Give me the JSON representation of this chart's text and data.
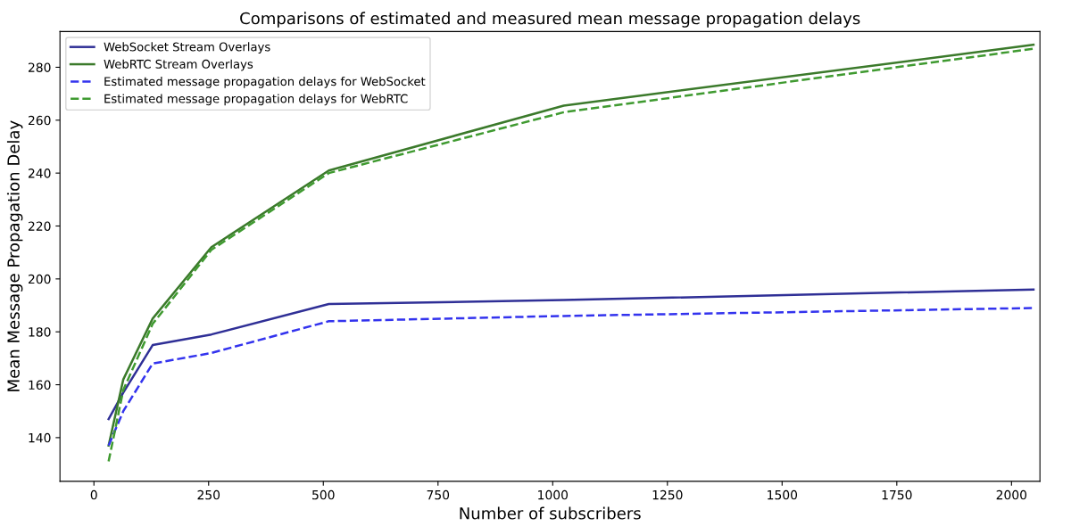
{
  "chart_data": {
    "type": "line",
    "title": "Comparisons of estimated and measured mean message propagation delays",
    "xlabel": "Number of subscribers",
    "ylabel": "Mean Message Propagation Delay",
    "x": [
      32,
      64,
      128,
      256,
      512,
      1024,
      2048
    ],
    "series": [
      {
        "name": "WebSocket Stream Overlays",
        "color": "#2f2f96",
        "line_style": "solid",
        "values": [
          147,
          157,
          175,
          179,
          190.5,
          192,
          196
        ]
      },
      {
        "name": "WebRTC Stream Overlays",
        "color": "#3b7a2b",
        "line_style": "solid",
        "values": [
          137,
          162,
          185,
          212,
          241,
          265.5,
          288.5
        ]
      },
      {
        "name": "Estimated message propagation delays for WebSocket",
        "color": "#3333ee",
        "line_style": "dashed",
        "values": [
          137,
          150,
          168,
          172,
          184,
          186,
          189
        ]
      },
      {
        "name": "Estimated message propagation delays for WebRTC",
        "color": "#3f9a30",
        "line_style": "dashed",
        "values": [
          131,
          158,
          183,
          211,
          240,
          263,
          287
        ]
      }
    ],
    "xlim": [
      -74,
      2062
    ],
    "ylim": [
      123.5,
      293.5
    ],
    "xticks": [
      0,
      250,
      500,
      750,
      1000,
      1250,
      1500,
      1750,
      2000
    ],
    "yticks": [
      140,
      160,
      180,
      200,
      220,
      240,
      260,
      280
    ],
    "grid": false,
    "legend": "top left",
    "marker": "none"
  }
}
